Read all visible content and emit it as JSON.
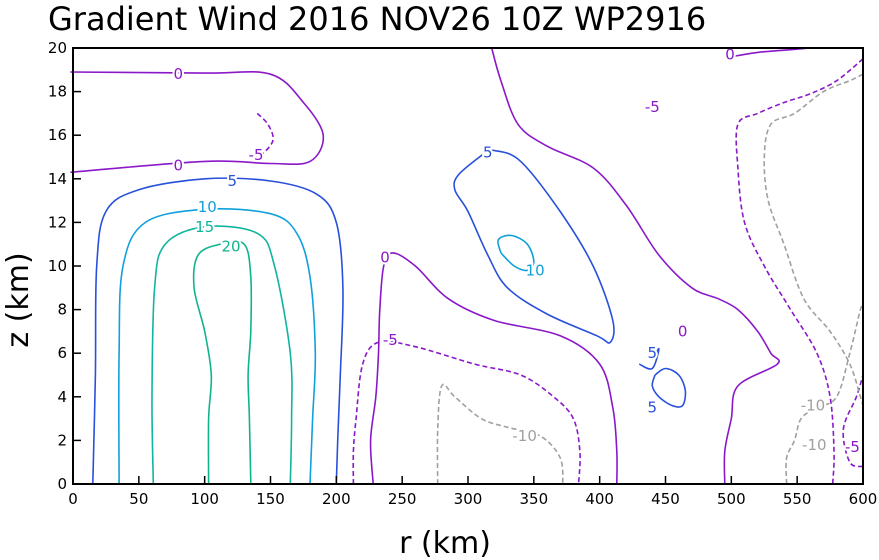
{
  "chart_data": {
    "type": "contour",
    "title": "Gradient Wind 2016 NOV26 10Z  WP2916",
    "xlabel": "r (km)",
    "ylabel": "z (km)",
    "xlim": [
      0,
      600
    ],
    "ylim": [
      0,
      20
    ],
    "x_ticks": [
      0,
      50,
      100,
      150,
      200,
      250,
      300,
      350,
      400,
      450,
      500,
      550,
      600
    ],
    "y_ticks": [
      0,
      2,
      4,
      6,
      8,
      10,
      12,
      14,
      16,
      18,
      20
    ],
    "grid": false,
    "colors": {
      "axis": "#000000",
      "c0": "#8a18c8",
      "cneg5": "#8a18c8",
      "c5": "#2850dc",
      "c10": "#10a0dc",
      "c15": "#10b4a0",
      "c20": "#10b48c",
      "cneg10": "#a0a0a0"
    },
    "contours": [
      {
        "level": "0",
        "color": "c0",
        "dash": false,
        "points": [
          [
            -2,
            18.9
          ],
          [
            100,
            18.85
          ],
          [
            150,
            18.8
          ],
          [
            175,
            17.5
          ],
          [
            190,
            16.0
          ],
          [
            180,
            14.8
          ],
          [
            150,
            14.7
          ],
          [
            100,
            14.8
          ],
          [
            -2,
            14.3
          ]
        ]
      },
      {
        "level": "-5",
        "color": "cneg5",
        "dash": true,
        "points": [
          [
            140,
            17.0
          ],
          [
            148,
            16.5
          ],
          [
            152,
            15.8
          ],
          [
            145,
            15.2
          ],
          [
            138,
            15.0
          ]
        ]
      },
      {
        "level": "5",
        "color": "c5",
        "dash": false,
        "points": [
          [
            15,
            0
          ],
          [
            17,
            5
          ],
          [
            18,
            10
          ],
          [
            25,
            12.5
          ],
          [
            50,
            13.5
          ],
          [
            100,
            14.0
          ],
          [
            150,
            13.9
          ],
          [
            185,
            13.3
          ],
          [
            200,
            12
          ],
          [
            205,
            9
          ],
          [
            203,
            5
          ],
          [
            201,
            2
          ],
          [
            200,
            0
          ]
        ]
      },
      {
        "level": "10",
        "color": "c10",
        "dash": false,
        "points": [
          [
            35,
            0
          ],
          [
            35,
            6
          ],
          [
            38,
            10
          ],
          [
            55,
            12.0
          ],
          [
            100,
            12.6
          ],
          [
            150,
            12.4
          ],
          [
            170,
            11.5
          ],
          [
            180,
            9.5
          ],
          [
            184,
            6
          ],
          [
            182,
            3
          ],
          [
            180,
            0
          ]
        ]
      },
      {
        "level": "15",
        "color": "c15",
        "dash": false,
        "points": [
          [
            61,
            0
          ],
          [
            60,
            4
          ],
          [
            62,
            9
          ],
          [
            70,
            11.0
          ],
          [
            100,
            11.8
          ],
          [
            140,
            11.5
          ],
          [
            153,
            10
          ],
          [
            165,
            6
          ],
          [
            166,
            3
          ],
          [
            165,
            0
          ]
        ]
      },
      {
        "level": "20",
        "color": "c20",
        "dash": false,
        "points": [
          [
            103,
            0
          ],
          [
            103,
            3
          ],
          [
            105,
            5
          ],
          [
            100,
            7
          ],
          [
            92,
            9
          ],
          [
            95,
            10.5
          ],
          [
            112,
            11.0
          ],
          [
            130,
            11.0
          ],
          [
            135,
            9.5
          ],
          [
            135,
            7
          ],
          [
            133,
            5
          ],
          [
            134,
            3
          ],
          [
            135,
            0
          ]
        ]
      },
      {
        "level": "0",
        "color": "c0",
        "dash": false,
        "points": [
          [
            228,
            0
          ],
          [
            226,
            2
          ],
          [
            230,
            4
          ],
          [
            232,
            6
          ],
          [
            233,
            8
          ],
          [
            236,
            10
          ],
          [
            243,
            10.6
          ],
          [
            260,
            10
          ],
          [
            285,
            8.5
          ],
          [
            320,
            7.5
          ],
          [
            370,
            6.8
          ],
          [
            400,
            5.5
          ],
          [
            410,
            3.5
          ],
          [
            413,
            1.5
          ],
          [
            413,
            0
          ]
        ]
      },
      {
        "level": "-5",
        "color": "cneg5",
        "dash": true,
        "points": [
          [
            213,
            0
          ],
          [
            213,
            1.5
          ],
          [
            215,
            3
          ],
          [
            220,
            5.5
          ],
          [
            232,
            6.5
          ],
          [
            260,
            6.3
          ],
          [
            305,
            5.5
          ],
          [
            340,
            5.0
          ],
          [
            365,
            4.0
          ],
          [
            380,
            3.0
          ],
          [
            385,
            1.5
          ],
          [
            384,
            0
          ]
        ]
      },
      {
        "level": "5",
        "color": "c5",
        "dash": false,
        "points": [
          [
            313,
            15.2
          ],
          [
            293,
            14.2
          ],
          [
            290,
            13.5
          ],
          [
            300,
            12.5
          ],
          [
            315,
            10.5
          ],
          [
            330,
            9
          ],
          [
            360,
            7.8
          ],
          [
            398,
            6.8
          ],
          [
            408,
            6.5
          ],
          [
            410,
            7.5
          ],
          [
            395,
            10
          ],
          [
            370,
            12.5
          ],
          [
            340,
            14.8
          ],
          [
            320,
            15.3
          ],
          [
            313,
            15.2
          ]
        ]
      },
      {
        "level": "10",
        "color": "c10",
        "dash": false,
        "points": [
          [
            325,
            10.6
          ],
          [
            323,
            11.2
          ],
          [
            333,
            11.4
          ],
          [
            345,
            11.0
          ],
          [
            350,
            10.2
          ],
          [
            345,
            9.8
          ],
          [
            335,
            10.0
          ],
          [
            325,
            10.6
          ]
        ]
      },
      {
        "level": "5",
        "color": "c5",
        "dash": false,
        "points": [
          [
            430,
            5.5
          ],
          [
            440,
            5.3
          ],
          [
            445,
            6.2
          ],
          [
            440,
            5.7
          ]
        ]
      },
      {
        "level": "5",
        "color": "c5",
        "dash": false,
        "points": [
          [
            442,
            5.0
          ],
          [
            450,
            5.3
          ],
          [
            460,
            5.0
          ],
          [
            465,
            4.3
          ],
          [
            463,
            3.6
          ],
          [
            455,
            3.6
          ],
          [
            445,
            4.0
          ],
          [
            440,
            4.5
          ],
          [
            442,
            5.0
          ]
        ]
      },
      {
        "level": "0",
        "color": "c0",
        "dash": false,
        "points": [
          [
            318,
            20
          ],
          [
            325,
            18.5
          ],
          [
            338,
            16.5
          ],
          [
            360,
            15.5
          ],
          [
            395,
            14.5
          ],
          [
            420,
            12.8
          ],
          [
            445,
            10.5
          ],
          [
            470,
            9
          ],
          [
            490,
            8.5
          ],
          [
            505,
            8
          ],
          [
            520,
            7
          ],
          [
            530,
            6
          ],
          [
            535,
            5.5
          ],
          [
            505,
            4.5
          ],
          [
            500,
            3.0
          ],
          [
            495,
            1.5
          ],
          [
            495,
            0
          ]
        ]
      },
      {
        "level": "0",
        "color": "c0",
        "dash": false,
        "points": [
          [
            500,
            19.6
          ],
          [
            520,
            19.8
          ],
          [
            540,
            19.9
          ],
          [
            560,
            20.0
          ]
        ]
      },
      {
        "level": "-5",
        "color": "cneg5",
        "dash": true,
        "points": [
          [
            600,
            19.5
          ],
          [
            580,
            18.5
          ],
          [
            560,
            17.9
          ],
          [
            540,
            17.5
          ],
          [
            520,
            17.0
          ],
          [
            505,
            16.5
          ],
          [
            505,
            14.5
          ],
          [
            510,
            12
          ],
          [
            525,
            10
          ],
          [
            545,
            8.0
          ],
          [
            565,
            6.0
          ],
          [
            575,
            4.0
          ],
          [
            578,
            1.5
          ],
          [
            577,
            0
          ]
        ]
      },
      {
        "level": "-5",
        "color": "cneg5",
        "dash": true,
        "points": [
          [
            600,
            0.8
          ],
          [
            590,
            1.0
          ],
          [
            585,
            2.5
          ],
          [
            595,
            4.0
          ],
          [
            600,
            5.0
          ]
        ]
      },
      {
        "level": "-10",
        "color": "cneg10",
        "dash": true,
        "points": [
          [
            600,
            18.8
          ],
          [
            590,
            18.5
          ],
          [
            570,
            18.0
          ],
          [
            548,
            17.0
          ],
          [
            530,
            16.5
          ],
          [
            525,
            15.0
          ],
          [
            528,
            13
          ],
          [
            540,
            11
          ],
          [
            555,
            8.5
          ],
          [
            575,
            7
          ],
          [
            590,
            5.5
          ],
          [
            598,
            4.0
          ],
          [
            600,
            3.6
          ]
        ]
      },
      {
        "level": "-10",
        "color": "cneg10",
        "dash": true,
        "points": [
          [
            277,
            0
          ],
          [
            277,
            2.5
          ],
          [
            280,
            4.5
          ],
          [
            290,
            4.0
          ],
          [
            310,
            3.0
          ],
          [
            330,
            2.6
          ],
          [
            355,
            2.2
          ],
          [
            370,
            1.2
          ],
          [
            372,
            0
          ]
        ]
      },
      {
        "level": "-10",
        "color": "cneg10",
        "dash": true,
        "points": [
          [
            542,
            0
          ],
          [
            542,
            1.2
          ],
          [
            548,
            2.0
          ],
          [
            553,
            3.0
          ],
          [
            565,
            3.5
          ],
          [
            580,
            4.0
          ],
          [
            590,
            6.0
          ],
          [
            598,
            8.0
          ],
          [
            600,
            8.2
          ]
        ]
      }
    ],
    "labels": [
      {
        "text": "0",
        "x": 80,
        "y": 18.8,
        "color": "c0"
      },
      {
        "text": "0",
        "x": 80,
        "y": 14.6,
        "color": "c0"
      },
      {
        "text": "-5",
        "x": 139,
        "y": 15.1,
        "color": "cneg5"
      },
      {
        "text": "5",
        "x": 121,
        "y": 13.9,
        "color": "c5"
      },
      {
        "text": "10",
        "x": 102,
        "y": 12.7,
        "color": "c10"
      },
      {
        "text": "15",
        "x": 100,
        "y": 11.8,
        "color": "c15"
      },
      {
        "text": "20",
        "x": 120,
        "y": 10.9,
        "color": "c20"
      },
      {
        "text": "0",
        "x": 237,
        "y": 10.4,
        "color": "c0"
      },
      {
        "text": "-5",
        "x": 241,
        "y": 6.6,
        "color": "cneg5"
      },
      {
        "text": "5",
        "x": 315,
        "y": 15.2,
        "color": "c5"
      },
      {
        "text": "10",
        "x": 351,
        "y": 9.8,
        "color": "c10"
      },
      {
        "text": "5",
        "x": 440,
        "y": 6.0,
        "color": "c5"
      },
      {
        "text": "5",
        "x": 440,
        "y": 3.5,
        "color": "c5"
      },
      {
        "text": "-10",
        "x": 343,
        "y": 2.2,
        "color": "cneg10"
      },
      {
        "text": "-5",
        "x": 440,
        "y": 17.3,
        "color": "cneg5"
      },
      {
        "text": "0",
        "x": 463,
        "y": 7.0,
        "color": "c0"
      },
      {
        "text": "0",
        "x": 499,
        "y": 19.7,
        "color": "c0"
      },
      {
        "text": "-10",
        "x": 562,
        "y": 3.6,
        "color": "cneg10"
      },
      {
        "text": "-10",
        "x": 563,
        "y": 1.8,
        "color": "cneg10"
      },
      {
        "text": "-5",
        "x": 592,
        "y": 1.7,
        "color": "cneg5"
      }
    ]
  }
}
